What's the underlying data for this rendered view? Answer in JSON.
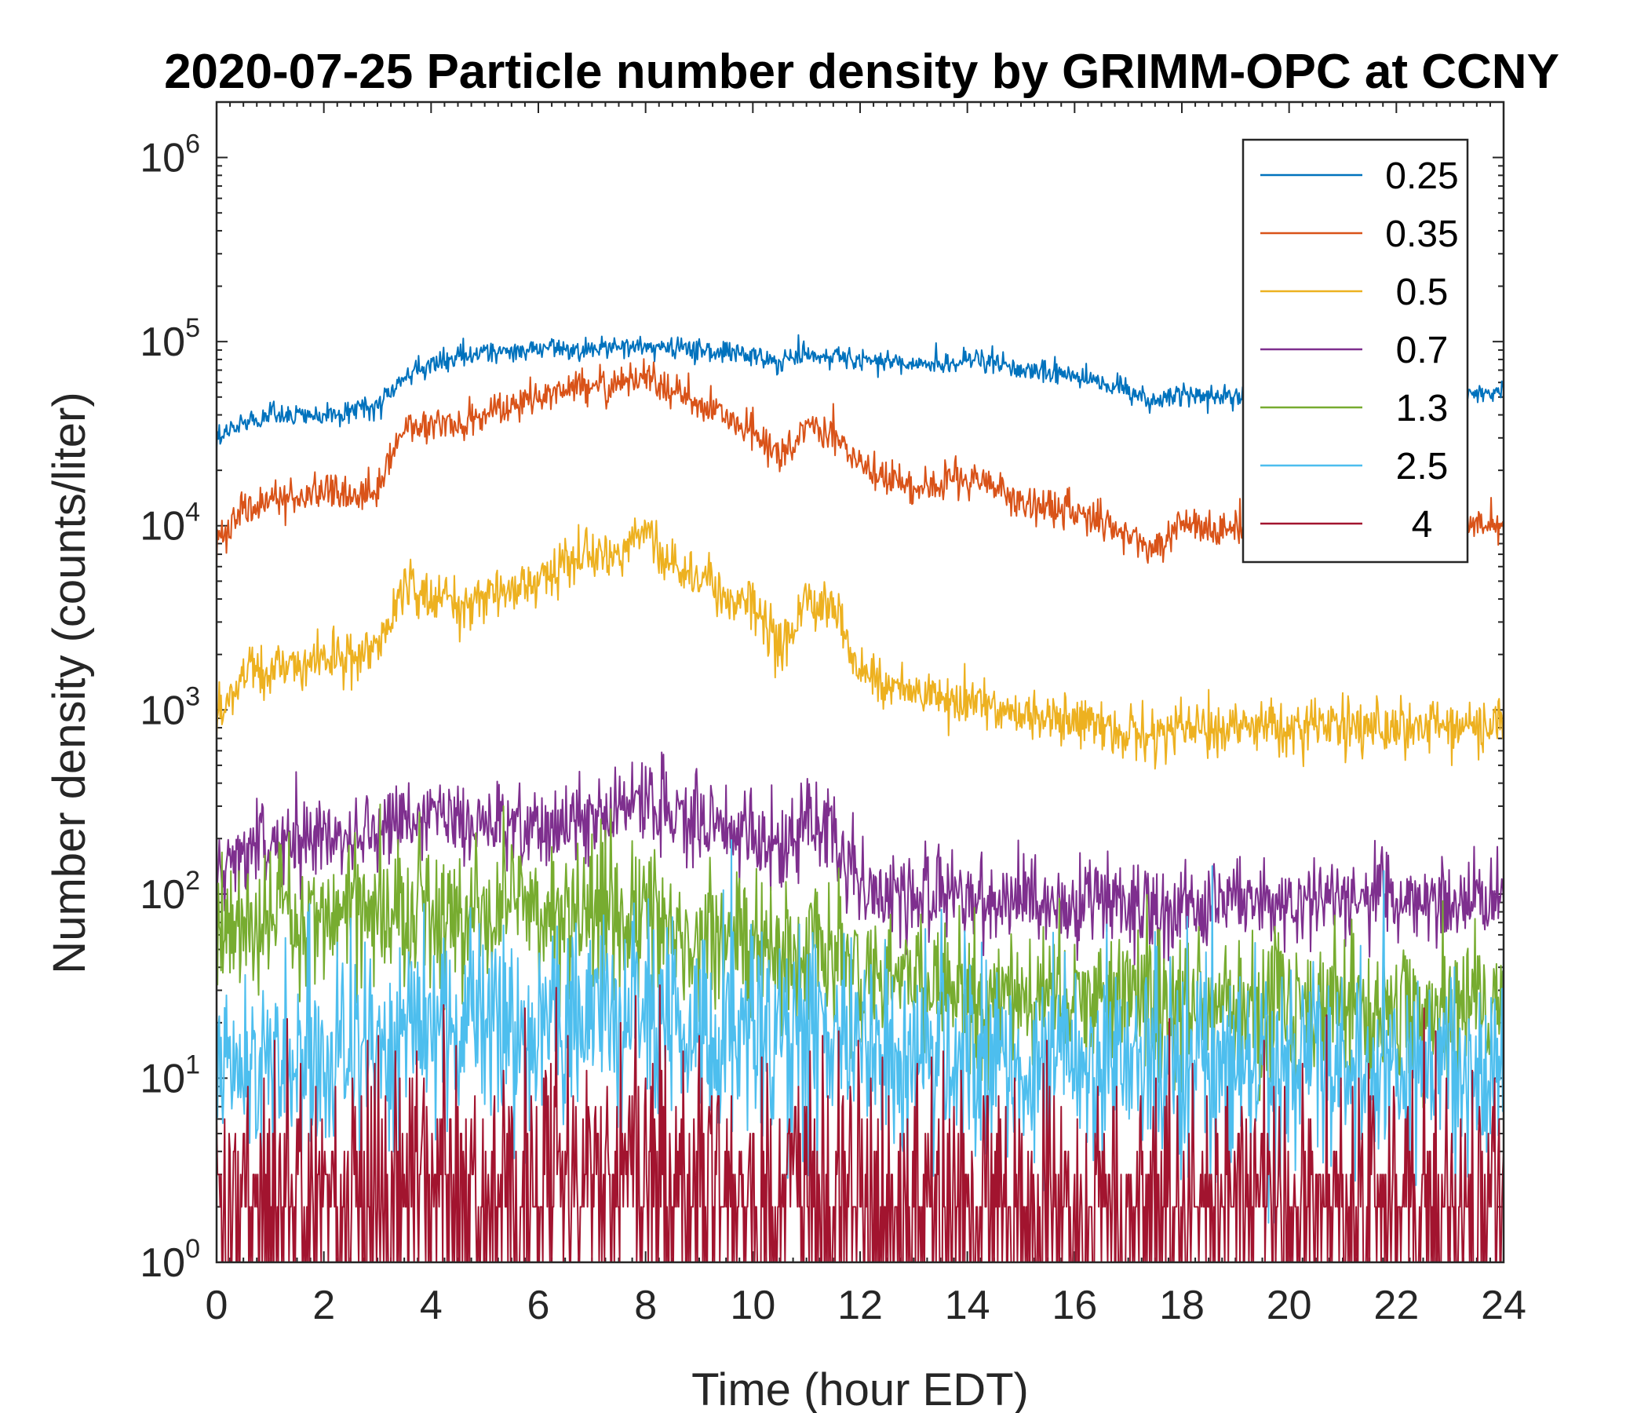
{
  "chart_data": {
    "type": "line",
    "title": "2020-07-25 Particle number density by GRIMM-OPC at CCNY",
    "xlabel": "Time (hour EDT)",
    "ylabel": "Number density (counts/liter)",
    "xlim": [
      0,
      24
    ],
    "ylim": [
      1,
      2000000
    ],
    "yscale": "log",
    "x_ticks": [
      0,
      2,
      4,
      6,
      8,
      10,
      12,
      14,
      16,
      18,
      20,
      22,
      24
    ],
    "x_tick_labels": [
      "0",
      "2",
      "4",
      "6",
      "8",
      "10",
      "12",
      "14",
      "16",
      "18",
      "20",
      "22",
      "24"
    ],
    "y_ticks": [
      {
        "value": 1,
        "base": "10",
        "exp": "0"
      },
      {
        "value": 10,
        "base": "10",
        "exp": "1"
      },
      {
        "value": 100,
        "base": "10",
        "exp": "2"
      },
      {
        "value": 1000,
        "base": "10",
        "exp": "3"
      },
      {
        "value": 10000,
        "base": "10",
        "exp": "4"
      },
      {
        "value": 100000,
        "base": "10",
        "exp": "5"
      },
      {
        "value": 1000000,
        "base": "10",
        "exp": "6"
      }
    ],
    "legend_position": "top-right",
    "x": [
      0,
      0.5,
      1,
      1.5,
      2,
      2.5,
      3,
      3.5,
      4,
      4.5,
      5,
      5.5,
      6,
      6.5,
      7,
      7.5,
      8,
      8.5,
      9,
      9.5,
      10,
      10.5,
      11,
      11.5,
      12,
      12.5,
      13,
      13.5,
      14,
      14.5,
      15,
      15.5,
      16,
      16.5,
      17,
      17.5,
      18,
      18.5,
      19,
      19.5,
      20,
      20.5,
      21,
      21.5,
      22,
      22.5,
      23,
      23.5,
      24
    ],
    "series": [
      {
        "name": "0.25",
        "color": "#0072BD",
        "noise": 0.03,
        "values": [
          30000,
          36000,
          40000,
          40000,
          40000,
          42000,
          45000,
          65000,
          75000,
          82000,
          88000,
          88000,
          90000,
          92000,
          92000,
          92000,
          95000,
          92000,
          90000,
          88000,
          85000,
          78000,
          85000,
          82000,
          80000,
          78000,
          75000,
          75000,
          80000,
          78000,
          72000,
          68000,
          65000,
          60000,
          55000,
          47000,
          53000,
          50000,
          50000,
          50000,
          50000,
          50000,
          52000,
          52000,
          52000,
          52000,
          52000,
          53000,
          54000
        ]
      },
      {
        "name": "0.35",
        "color": "#D95319",
        "noise": 0.05,
        "values": [
          8000,
          12000,
          14000,
          14000,
          16000,
          14000,
          16000,
          35000,
          36000,
          36000,
          40000,
          45000,
          50000,
          55000,
          60000,
          58000,
          65000,
          52000,
          45000,
          40000,
          32000,
          22000,
          35000,
          33000,
          22000,
          18000,
          16000,
          16000,
          18000,
          17000,
          13000,
          12500,
          12000,
          11000,
          9000,
          7500,
          10500,
          9500,
          9500,
          9500,
          9500,
          10000,
          10000,
          10000,
          10000,
          10000,
          10000,
          10000,
          10500
        ]
      },
      {
        "name": "0.5",
        "color": "#EDB120",
        "noise": 0.07,
        "values": [
          900,
          1500,
          1700,
          1800,
          2000,
          1800,
          2200,
          4800,
          4000,
          3900,
          4200,
          4500,
          5200,
          6500,
          6800,
          6900,
          9200,
          5500,
          5000,
          4200,
          3800,
          2200,
          4000,
          3600,
          1600,
          1350,
          1250,
          1200,
          1100,
          1050,
          950,
          900,
          850,
          800,
          750,
          700,
          800,
          780,
          790,
          800,
          790,
          800,
          800,
          810,
          800,
          810,
          820,
          830,
          900
        ]
      },
      {
        "name": "0.7",
        "color": "#7E2F8E",
        "noise": 0.12,
        "values": [
          140,
          180,
          190,
          190,
          200,
          210,
          220,
          260,
          270,
          250,
          230,
          240,
          210,
          260,
          270,
          300,
          340,
          280,
          260,
          240,
          210,
          160,
          260,
          230,
          110,
          100,
          100,
          100,
          100,
          95,
          95,
          92,
          90,
          90,
          85,
          80,
          90,
          90,
          92,
          95,
          92,
          95,
          95,
          95,
          92,
          92,
          92,
          95,
          95
        ]
      },
      {
        "name": "1.3",
        "color": "#77AC30",
        "noise": 0.2,
        "values": [
          60,
          70,
          75,
          75,
          75,
          75,
          75,
          80,
          80,
          75,
          75,
          75,
          75,
          80,
          80,
          80,
          80,
          60,
          55,
          55,
          55,
          50,
          55,
          55,
          35,
          35,
          32,
          30,
          30,
          30,
          28,
          28,
          28,
          26,
          26,
          24,
          25,
          25,
          25,
          25,
          25,
          25,
          25,
          25,
          25,
          25,
          25,
          25,
          25
        ]
      },
      {
        "name": "2.5",
        "color": "#4DBEEE",
        "noise": 0.28,
        "values": [
          10,
          12,
          14,
          13,
          13,
          13,
          14,
          18,
          20,
          19,
          18,
          19,
          19,
          20,
          22,
          22,
          24,
          20,
          19,
          18,
          18,
          16,
          18,
          18,
          14,
          14,
          13,
          13,
          13,
          13,
          13,
          12,
          12,
          12,
          12,
          12,
          12,
          12,
          12,
          12,
          12,
          12,
          12,
          12,
          12,
          12,
          12,
          12,
          12
        ]
      },
      {
        "name": "4",
        "color": "#A2142F",
        "noise": 0.38,
        "values": [
          2,
          2,
          2,
          2,
          2,
          2,
          2,
          2.4,
          2.5,
          2.5,
          2.5,
          2.5,
          2.5,
          2.6,
          2.8,
          2.8,
          3,
          2.5,
          2.4,
          2.4,
          2.3,
          2.2,
          2.3,
          2.3,
          2,
          2,
          2,
          2,
          2,
          2,
          2,
          2,
          2,
          2,
          2,
          2,
          2,
          2,
          2,
          2,
          2,
          2,
          2,
          2,
          2,
          2,
          2,
          2,
          2
        ]
      }
    ]
  }
}
